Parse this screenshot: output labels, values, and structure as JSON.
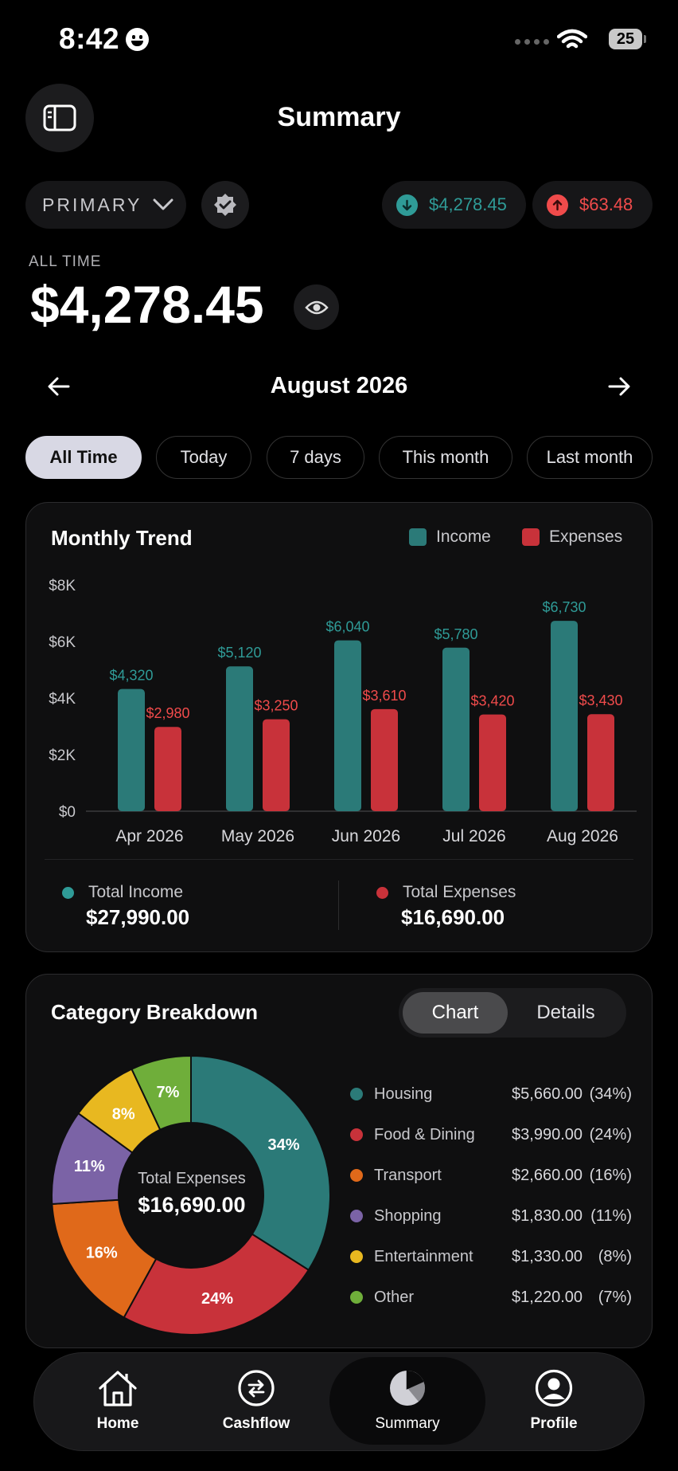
{
  "status_bar": {
    "time": "8:42",
    "battery": "25"
  },
  "header": {
    "title": "Summary"
  },
  "account": {
    "name": "PRIMARY",
    "income": "$4,278.45",
    "expense": "$63.48"
  },
  "balance": {
    "label": "ALL TIME",
    "value": "$4,278.45"
  },
  "period": {
    "month": "August 2026"
  },
  "filters": [
    "All Time",
    "Today",
    "7 days",
    "This month",
    "Last month"
  ],
  "trend": {
    "title": "Monthly Trend",
    "legend": {
      "income": "Income",
      "expenses": "Expenses"
    },
    "total_income_label": "Total Income",
    "total_income": "$27,990.00",
    "total_expenses_label": "Total Expenses",
    "total_expenses": "$16,690.00"
  },
  "chart_data": {
    "type": "bar",
    "categories": [
      "Apr 2026",
      "May 2026",
      "Jun 2026",
      "Jul 2026",
      "Aug 2026"
    ],
    "series": [
      {
        "name": "Income",
        "values": [
          4320,
          5120,
          6040,
          5780,
          6730
        ],
        "labels": [
          "$4,320",
          "$5,120",
          "$6,040",
          "$5,780",
          "$6,730"
        ],
        "color": "#2b7a78"
      },
      {
        "name": "Expenses",
        "values": [
          2980,
          3250,
          3610,
          3420,
          3430
        ],
        "labels": [
          "$2,980",
          "$3,250",
          "$3,610",
          "$3,420",
          "$3,430"
        ],
        "color": "#c8323a"
      }
    ],
    "ylim": [
      0,
      8000
    ],
    "yticks": [
      0,
      2000,
      4000,
      6000,
      8000
    ],
    "ytick_labels": [
      "$0",
      "$2K",
      "$4K",
      "$6K",
      "$8K"
    ],
    "grid": false,
    "legend": "top-right"
  },
  "categories": {
    "title": "Category Breakdown",
    "tabs": {
      "chart": "Chart",
      "details": "Details"
    },
    "center_label": "Total Expenses",
    "center_value": "$16,690.00",
    "items": [
      {
        "name": "Housing",
        "amount": "$5,660.00",
        "pct": "(34%)",
        "pct_value": 34,
        "slice_label": "34%",
        "color": "#2b7a78"
      },
      {
        "name": "Food & Dining",
        "amount": "$3,990.00",
        "pct": "(24%)",
        "pct_value": 24,
        "slice_label": "24%",
        "color": "#c8323a"
      },
      {
        "name": "Transport",
        "amount": "$2,660.00",
        "pct": "(16%)",
        "pct_value": 16,
        "slice_label": "16%",
        "color": "#e0691a"
      },
      {
        "name": "Shopping",
        "amount": "$1,830.00",
        "pct": "(11%)",
        "pct_value": 11,
        "slice_label": "11%",
        "color": "#7b63a6"
      },
      {
        "name": "Entertainment",
        "amount": "$1,330.00",
        "pct": "(8%)",
        "pct_value": 8,
        "slice_label": "8%",
        "color": "#e8b820"
      },
      {
        "name": "Other",
        "amount": "$1,220.00",
        "pct": "(7%)",
        "pct_value": 7,
        "slice_label": "7%",
        "color": "#6fae3a"
      }
    ]
  },
  "nav": {
    "home": "Home",
    "cashflow": "Cashflow",
    "summary": "Summary",
    "profile": "Profile"
  },
  "colors": {
    "income": "#2f9b97",
    "expense": "#f04b4b"
  }
}
